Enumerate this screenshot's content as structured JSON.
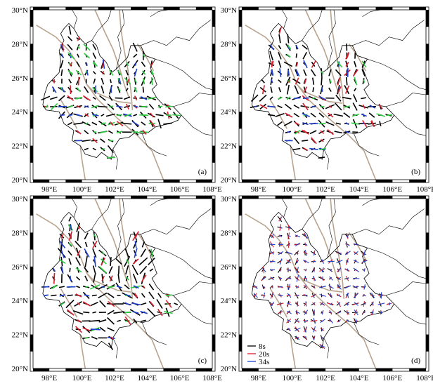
{
  "figure": {
    "panels": [
      {
        "id": "a",
        "label": "(a)",
        "bar_colors": [
          "#000000",
          "#2ecc40",
          "#1f3fd0",
          "#d81e2b"
        ],
        "mode": "mixed"
      },
      {
        "id": "b",
        "label": "(b)",
        "bar_colors": [
          "#000000",
          "#2ecc40",
          "#1f3fd0",
          "#d81e2b"
        ],
        "mode": "mixed"
      },
      {
        "id": "c",
        "label": "(c)",
        "bar_colors": [
          "#000000",
          "#2ecc40",
          "#1f3fd0",
          "#d81e2b"
        ],
        "mode": "mixed_strong"
      },
      {
        "id": "d",
        "label": "(d)",
        "bar_colors": [
          "#000000",
          "#d81e2b",
          "#1f3fd0"
        ],
        "mode": "periods"
      }
    ],
    "x_ticks": [
      "98°E",
      "100°E",
      "102°E",
      "104°E",
      "106°E",
      "108°E"
    ],
    "y_ticks": [
      "20°N",
      "22°N",
      "24°N",
      "26°N",
      "28°N",
      "30°N"
    ],
    "x_range": [
      97,
      108
    ],
    "y_range": [
      20,
      30
    ],
    "legend": [
      {
        "label": "8s",
        "color": "#000000"
      },
      {
        "label": "20s",
        "color": "#d81e2b"
      },
      {
        "label": "34s",
        "color": "#1f3fd0"
      }
    ],
    "colors": {
      "boundary": "#000000",
      "fault": "#b8a48e",
      "frame": "#000000"
    }
  }
}
